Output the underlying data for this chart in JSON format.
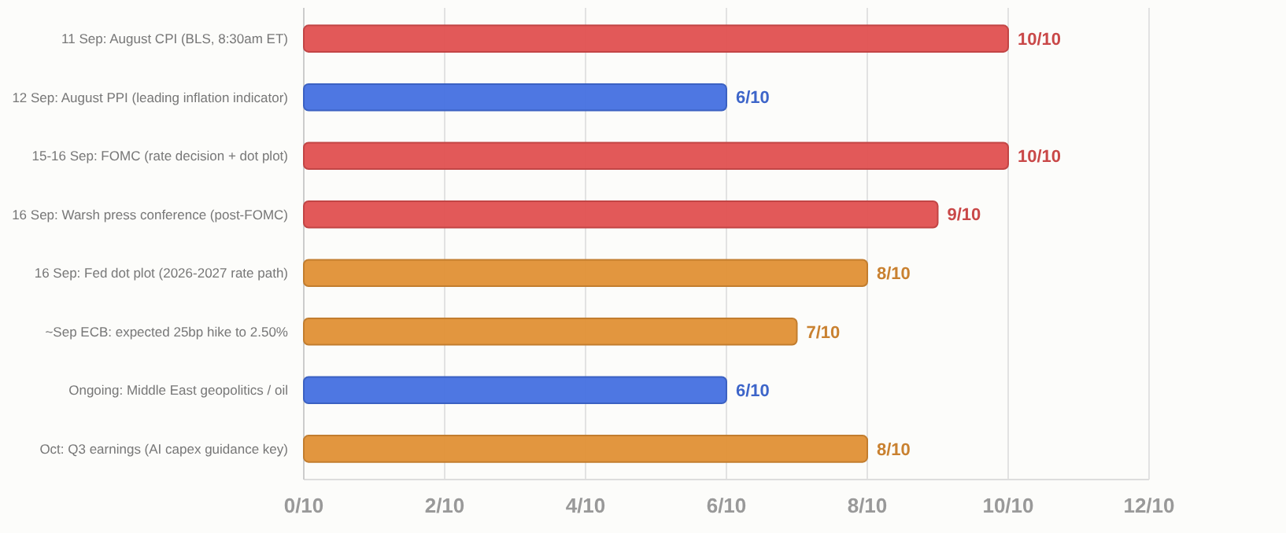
{
  "chart_data": {
    "type": "bar",
    "orientation": "horizontal",
    "categories": [
      "11 Sep: August CPI (BLS, 8:30am ET)",
      "12 Sep: August PPI (leading inflation indicator)",
      "15-16 Sep: FOMC (rate decision + dot plot)",
      "16 Sep: Warsh press conference (post-FOMC)",
      "16 Sep: Fed dot plot (2026-2027 rate path)",
      "~Sep ECB: expected 25bp hike to 2.50%",
      "Ongoing: Middle East geopolitics / oil",
      "Oct: Q3 earnings (AI capex guidance key)"
    ],
    "values": [
      1.0,
      0.6,
      1.0,
      0.9,
      0.8,
      0.7,
      0.6,
      0.8
    ],
    "colors": [
      "#e05050",
      "#4470e0",
      "#e05050",
      "#e05050",
      "#e09035",
      "#e09035",
      "#4470e0",
      "#e09035"
    ],
    "value_labels": [
      "10/10",
      "6/10",
      "10/10",
      "9/10",
      "8/10",
      "7/10",
      "6/10",
      "8/10"
    ],
    "xlim": [
      0,
      1.2
    ],
    "xticks": [
      {
        "value": 0,
        "label": "0/10"
      },
      {
        "value": 0.2,
        "label": "2/10"
      },
      {
        "value": 0.4,
        "label": "4/10"
      },
      {
        "value": 0.6,
        "label": "6/10"
      },
      {
        "value": 0.8,
        "label": "8/10"
      },
      {
        "value": 1.0,
        "label": "10/10"
      },
      {
        "value": 1.2,
        "label": "12/10"
      }
    ],
    "grid": "x"
  }
}
